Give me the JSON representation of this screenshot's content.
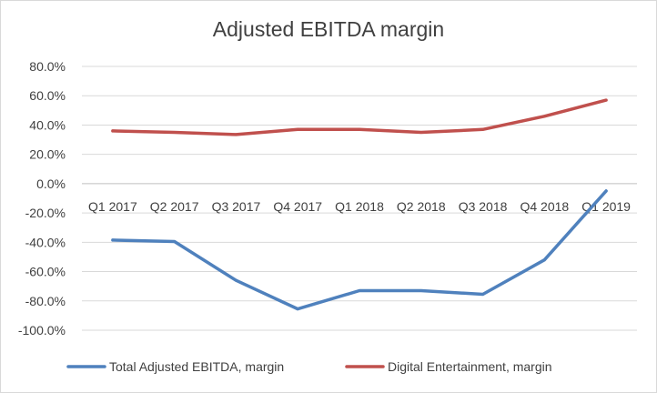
{
  "chart_data": {
    "type": "line",
    "title": "Adjusted EBITDA margin",
    "categories": [
      "Q1 2017",
      "Q2 2017",
      "Q3 2017",
      "Q4 2017",
      "Q1 2018",
      "Q2 2018",
      "Q3 2018",
      "Q4 2018",
      "Q1 2019"
    ],
    "series": [
      {
        "name": "Total Adjusted EBITDA, margin",
        "color": "#4f81bd",
        "values": [
          -38.5,
          -39.5,
          -66.0,
          -85.5,
          -73.0,
          -73.0,
          -75.5,
          -52.0,
          -5.0
        ]
      },
      {
        "name": "Digital Entertainment, margin",
        "color": "#c0504d",
        "values": [
          36.0,
          35.0,
          33.5,
          37.0,
          37.0,
          35.0,
          37.0,
          46.0,
          57.0
        ]
      }
    ],
    "ylim": [
      -100,
      80
    ],
    "yticks": [
      80,
      60,
      40,
      20,
      0,
      -20,
      -40,
      -60,
      -80,
      -100
    ],
    "ytick_labels": [
      "80.0%",
      "60.0%",
      "40.0%",
      "20.0%",
      "0.0%",
      "-20.0%",
      "-40.0%",
      "-60.0%",
      "-80.0%",
      "-100.0%"
    ],
    "grid": true,
    "legend_position": "bottom"
  }
}
